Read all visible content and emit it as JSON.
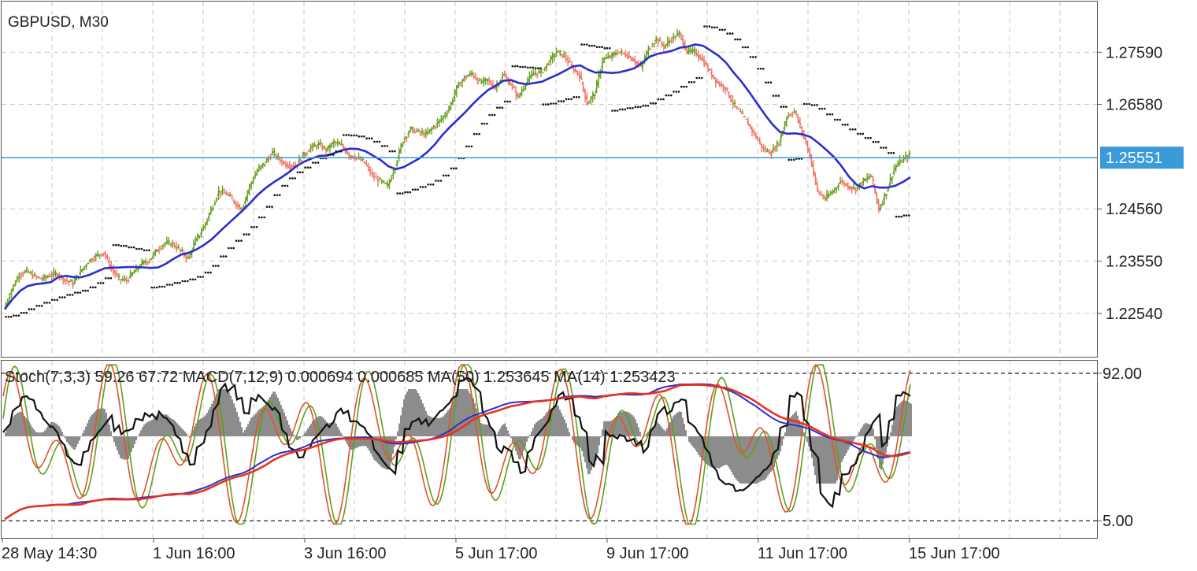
{
  "title": "GBPUSD, M30",
  "colors": {
    "background": "#ffffff",
    "grid": "#c8c8c8",
    "frame": "#555555",
    "bull_candle": "#6aa121",
    "bear_candle": "#f07a6a",
    "ma_line": "#2a2fc9",
    "sar_dots": "#111111",
    "price_line": "#3b9ad9",
    "price_tag_bg": "#3b9ad9",
    "stoch_main": "#5aa11c",
    "stoch_signal": "#e0522d",
    "macd_hist": "#8c8c8c",
    "macd_signal_line": "#111111",
    "ma50_line": "#e8321e",
    "ma14_line": "#2a2fc9"
  },
  "chart_data": [
    {
      "type": "candlestick",
      "symbol": "GBPUSD",
      "timeframe": "M30",
      "current_price": "1.25551",
      "y_ticks": [
        "1.27590",
        "1.26580",
        "1.25551",
        "1.24560",
        "1.23550",
        "1.22540"
      ],
      "y_tick_values": [
        1.2759,
        1.2658,
        1.25551,
        1.2456,
        1.2355,
        1.2254
      ],
      "ylim": [
        1.217,
        1.2857
      ],
      "x_ticks": [
        "28 May 14:30",
        "1 Jun 16:00",
        "3 Jun 16:00",
        "5 Jun 17:00",
        "9 Jun 17:00",
        "11 Jun 17:00",
        "15 Jun 17:00"
      ],
      "overlays": [
        "Moving Average",
        "Parabolic SAR"
      ],
      "grid": true,
      "closes_approx": [
        1.2262,
        1.23,
        1.233,
        1.2335,
        1.2325,
        1.232,
        1.2328,
        1.233,
        1.2318,
        1.2312,
        1.2335,
        1.2355,
        1.2365,
        1.2372,
        1.234,
        1.232,
        1.2318,
        1.2335,
        1.235,
        1.2358,
        1.2378,
        1.239,
        1.2388,
        1.2375,
        1.236,
        1.2395,
        1.242,
        1.2455,
        1.249,
        1.2485,
        1.247,
        1.2455,
        1.25,
        1.253,
        1.2545,
        1.2565,
        1.255,
        1.254,
        1.254,
        1.256,
        1.2575,
        1.258,
        1.257,
        1.2585,
        1.2578,
        1.256,
        1.2555,
        1.2545,
        1.252,
        1.251,
        1.25,
        1.254,
        1.259,
        1.261,
        1.2605,
        1.26,
        1.2615,
        1.263,
        1.265,
        1.269,
        1.271,
        1.2718,
        1.27,
        1.2705,
        1.269,
        1.2715,
        1.2698,
        1.2672,
        1.27,
        1.2718,
        1.272,
        1.274,
        1.276,
        1.2752,
        1.273,
        1.2715,
        1.266,
        1.268,
        1.2745,
        1.275,
        1.276,
        1.2755,
        1.2745,
        1.273,
        1.2765,
        1.2785,
        1.277,
        1.2785,
        1.2795,
        1.276,
        1.276,
        1.2745,
        1.272,
        1.27,
        1.269,
        1.266,
        1.264,
        1.262,
        1.2595,
        1.257,
        1.2565,
        1.2585,
        1.2635,
        1.2645,
        1.2605,
        1.256,
        1.249,
        1.2475,
        1.249,
        1.251,
        1.25,
        1.2495,
        1.251,
        1.252,
        1.2455,
        1.249,
        1.2535,
        1.255,
        1.256
      ]
    },
    {
      "type": "indicator",
      "header": "Stoch(7,3,3) 59.26 67.72 MACD(7,12,9) 0.000694 0.000685 MA(50) 1.253645 MA(14) 1.253423",
      "levels": [
        "92.00",
        "5.00"
      ],
      "level_values": [
        92,
        5
      ],
      "stoch": {
        "params": "7,3,3",
        "main": 59.26,
        "signal": 67.72
      },
      "macd": {
        "params": "7,12,9",
        "main": 0.000694,
        "signal": 0.000685
      },
      "ma50": 1.253645,
      "ma14": 1.253423
    }
  ]
}
